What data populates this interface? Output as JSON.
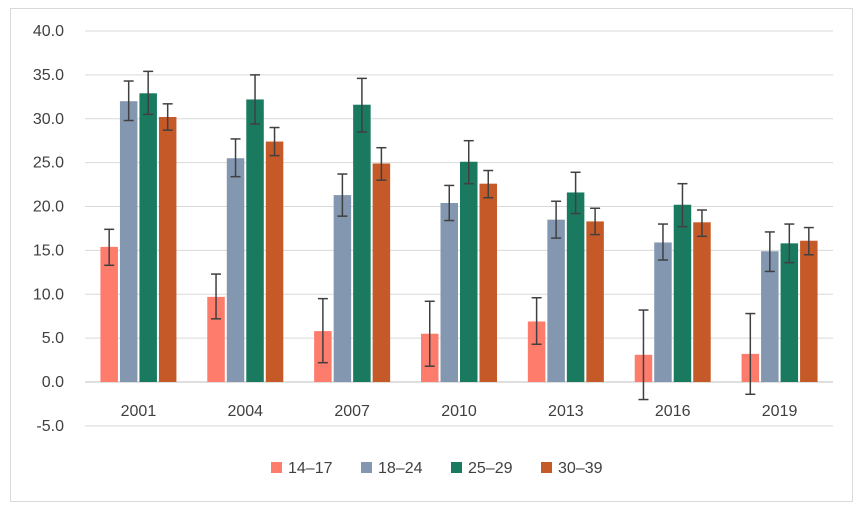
{
  "chart_data": {
    "type": "bar",
    "title": "",
    "xlabel": "",
    "ylabel": "",
    "categories": [
      "2001",
      "2004",
      "2007",
      "2010",
      "2013",
      "2016",
      "2019"
    ],
    "ylim": [
      -5.0,
      40.0
    ],
    "yticks": [
      "40.0",
      "35.0",
      "30.0",
      "25.0",
      "20.0",
      "15.0",
      "10.0",
      "5.0",
      "0.0",
      "-5.0"
    ],
    "ytick_values": [
      40,
      35,
      30,
      25,
      20,
      15,
      10,
      5,
      0,
      -5
    ],
    "grid": true,
    "legend_position": "bottom",
    "error_bars": true,
    "series": [
      {
        "name": "14–17",
        "color": "#fe7c6b",
        "values": [
          15.4,
          9.7,
          5.8,
          5.5,
          6.9,
          3.1,
          3.2
        ],
        "err_low": [
          13.3,
          7.2,
          2.2,
          1.8,
          4.3,
          -2.0,
          -1.4
        ],
        "err_high": [
          17.4,
          12.3,
          9.5,
          9.2,
          9.6,
          8.2,
          7.8
        ]
      },
      {
        "name": "18–24",
        "color": "#8497b0",
        "values": [
          32.0,
          25.5,
          21.3,
          20.4,
          18.5,
          15.9,
          14.9
        ],
        "err_low": [
          29.8,
          23.4,
          18.9,
          18.4,
          16.4,
          13.9,
          12.6
        ],
        "err_high": [
          34.3,
          27.7,
          23.7,
          22.4,
          20.6,
          18.0,
          17.1
        ]
      },
      {
        "name": "25–29",
        "color": "#1a7a60",
        "values": [
          32.9,
          32.2,
          31.6,
          25.1,
          21.6,
          20.2,
          15.8
        ],
        "err_low": [
          30.5,
          29.4,
          28.5,
          22.6,
          19.2,
          17.7,
          13.6
        ],
        "err_high": [
          35.4,
          35.0,
          34.6,
          27.5,
          23.9,
          22.6,
          18.0
        ]
      },
      {
        "name": "30–39",
        "color": "#c55a28",
        "values": [
          30.2,
          27.4,
          24.9,
          22.6,
          18.3,
          18.2,
          16.1
        ],
        "err_low": [
          28.7,
          25.8,
          23.0,
          21.0,
          16.8,
          16.6,
          14.5
        ],
        "err_high": [
          31.7,
          29.0,
          26.7,
          24.1,
          19.8,
          19.6,
          17.6
        ]
      }
    ]
  }
}
